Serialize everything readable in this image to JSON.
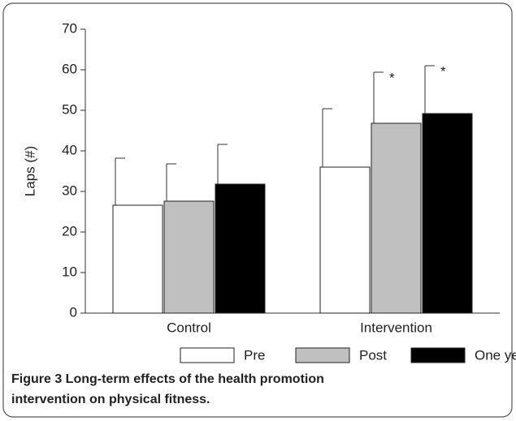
{
  "chart_data": {
    "type": "bar",
    "ylabel": "Laps (#)",
    "categories": [
      "Control",
      "Intervention"
    ],
    "series": [
      {
        "name": "Pre",
        "color": "#ffffff",
        "values": [
          26.6,
          36
        ],
        "errors": [
          11.6,
          14.4
        ]
      },
      {
        "name": "Post",
        "color": "#c0c0c0",
        "values": [
          27.6,
          46.8
        ],
        "errors": [
          9.2,
          12.6
        ]
      },
      {
        "name": "One year",
        "color": "#000000",
        "values": [
          31.8,
          49.2
        ],
        "errors": [
          9.8,
          11.8
        ]
      }
    ],
    "annotations": [
      {
        "text": "*",
        "series": 1,
        "category": 1
      },
      {
        "text": "*",
        "series": 2,
        "category": 1
      }
    ],
    "ylim": [
      0,
      70
    ],
    "yticks": [
      0,
      10,
      20,
      30,
      40,
      50,
      60,
      70
    ],
    "caption": [
      "Figure 3 Long-term effects of the health promotion",
      "intervention on physical fitness."
    ]
  }
}
